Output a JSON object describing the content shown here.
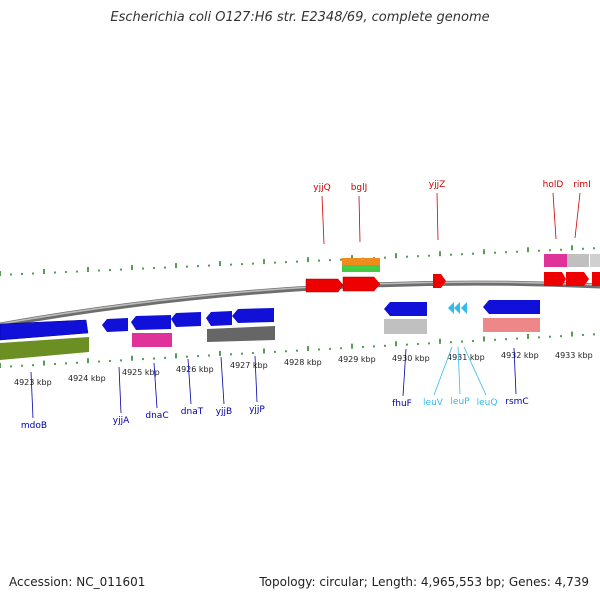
{
  "title": "Escherichia coli O127:H6 str. E2348/69, complete genome",
  "footer": {
    "accession": "Accession: NC_011601",
    "summary": "Topology: circular; Length: 4,965,553 bp; Genes: 4,739"
  },
  "colors": {
    "forward_label": "#cc0000",
    "reverse_label": "#0000aa",
    "rna_label": "#33bbee",
    "tick": "#1e7a1e",
    "backbone": "#888888"
  },
  "kbp_labels": [
    "4923 kbp",
    "4924 kbp",
    "4925 kbp",
    "4926 kbp",
    "4927 kbp",
    "4928 kbp",
    "4929 kbp",
    "4930 kbp",
    "4931 kbp",
    "4932 kbp",
    "4933 kbp"
  ],
  "forward_labels": [
    "yjjQ",
    "bglJ",
    "yjjZ",
    "holD",
    "rimI"
  ],
  "reverse_labels": [
    "mdoB",
    "yjjA",
    "dnaC",
    "dnaT",
    "yjjB",
    "yjjP",
    "fhuF",
    "leuV",
    "leuP",
    "leuQ",
    "rsmC"
  ]
}
